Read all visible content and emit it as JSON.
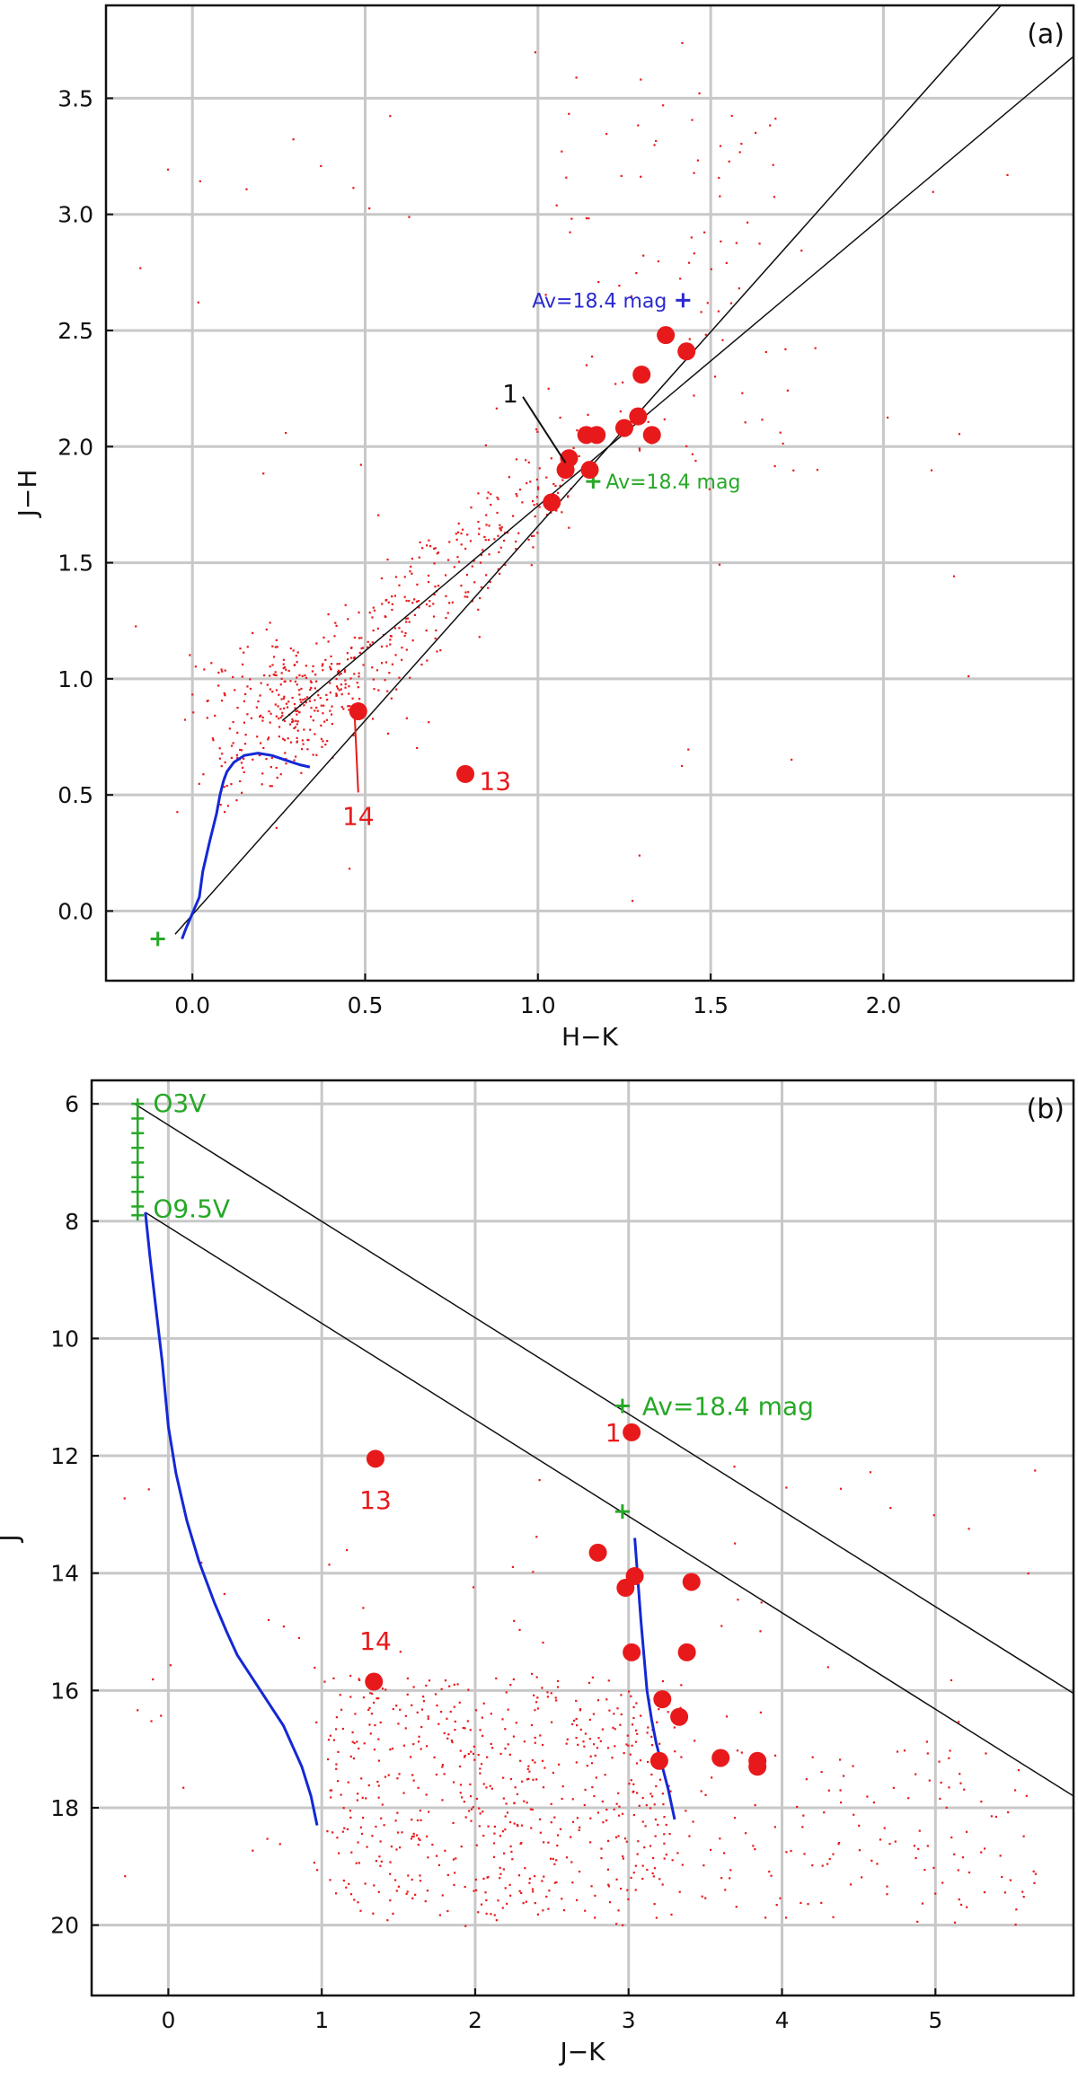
{
  "colors": {
    "star": "#e8191b",
    "isochrone": "#1428d6",
    "marker": "#27a827",
    "marker_blue": "#2a2ad0",
    "grid": "#c8c8c8",
    "axis": "#111111"
  },
  "chart_data": [
    {
      "type": "scatter",
      "panel_label": "(a)",
      "xlabel": "H−K",
      "ylabel": "J−H",
      "xlim": [
        -0.25,
        2.55
      ],
      "ylim": [
        -0.3,
        3.9
      ],
      "xticks": [
        "0.0",
        "0.5",
        "1.0",
        "1.5",
        "2.0"
      ],
      "yticks": [
        "0.0",
        "0.5",
        "1.0",
        "1.5",
        "2.0",
        "2.5",
        "3.0",
        "3.5"
      ],
      "grid": true,
      "reddening_lines": [
        {
          "x": [
            -0.05,
            2.37
          ],
          "y": [
            -0.1,
            3.95
          ]
        },
        {
          "x": [
            0.26,
            2.55
          ],
          "y": [
            0.82,
            3.68
          ]
        }
      ],
      "isochrone": {
        "x": [
          -0.03,
          -0.02,
          0.0,
          0.02,
          0.03,
          0.05,
          0.07,
          0.08,
          0.09,
          0.1,
          0.12,
          0.15,
          0.19,
          0.23,
          0.27,
          0.31,
          0.34
        ],
        "y": [
          -0.12,
          -0.08,
          -0.01,
          0.06,
          0.17,
          0.3,
          0.42,
          0.5,
          0.56,
          0.6,
          0.64,
          0.67,
          0.68,
          0.67,
          0.65,
          0.63,
          0.62
        ]
      },
      "markers": [
        {
          "x": -0.1,
          "y": -0.12,
          "color": "green"
        },
        {
          "x": 1.16,
          "y": 1.85,
          "color": "green",
          "text": "Av=18.4 mag"
        },
        {
          "x": 1.42,
          "y": 2.63,
          "color": "blue",
          "text": "Av=18.4 mag"
        }
      ],
      "sources": [
        {
          "x": 1.37,
          "y": 2.48
        },
        {
          "x": 1.43,
          "y": 2.41
        },
        {
          "x": 1.3,
          "y": 2.31
        },
        {
          "x": 1.14,
          "y": 2.05
        },
        {
          "x": 1.17,
          "y": 2.05
        },
        {
          "x": 1.25,
          "y": 2.08
        },
        {
          "x": 1.29,
          "y": 2.13
        },
        {
          "x": 1.33,
          "y": 2.05
        },
        {
          "x": 1.09,
          "y": 1.95
        },
        {
          "x": 1.08,
          "y": 1.9
        },
        {
          "x": 1.15,
          "y": 1.9
        },
        {
          "x": 1.04,
          "y": 1.76
        },
        {
          "x": 0.48,
          "y": 0.86
        },
        {
          "x": 0.79,
          "y": 0.59
        }
      ],
      "labels": [
        {
          "text": "1",
          "x": 0.92,
          "y": 2.23,
          "target": [
            1.08,
            1.93
          ]
        },
        {
          "text": "13",
          "x": 0.83,
          "y": 0.56
        },
        {
          "text": "14",
          "x": 0.48,
          "y": 0.41,
          "target": [
            0.47,
            0.83
          ]
        }
      ],
      "field_stars": {
        "count": 700,
        "shown_as": "small dots"
      }
    },
    {
      "type": "scatter",
      "panel_label": "(b)",
      "xlabel": "J−K",
      "ylabel": "J",
      "xlim": [
        -0.5,
        5.9
      ],
      "ylim": [
        21.2,
        5.6
      ],
      "xticks": [
        "0",
        "1",
        "2",
        "3",
        "4",
        "5"
      ],
      "yticks": [
        "6",
        "8",
        "10",
        "12",
        "14",
        "16",
        "18",
        "20"
      ],
      "grid": true,
      "reddening_lines": [
        {
          "x": [
            -0.22,
            5.9
          ],
          "y": [
            6.0,
            16.05
          ]
        },
        {
          "x": [
            -0.15,
            5.9
          ],
          "y": [
            7.85,
            17.8
          ]
        }
      ],
      "isochrone_left": {
        "x": [
          -0.15,
          -0.12,
          -0.08,
          -0.04,
          0.0,
          0.05,
          0.12,
          0.2,
          0.3,
          0.38,
          0.45,
          0.6,
          0.75,
          0.87,
          0.93,
          0.97
        ],
        "y": [
          7.85,
          8.6,
          9.5,
          10.4,
          11.5,
          12.3,
          13.1,
          13.8,
          14.5,
          15.0,
          15.4,
          16.0,
          16.6,
          17.3,
          17.8,
          18.3
        ]
      },
      "isochrone_right": {
        "x": [
          3.04,
          3.06,
          3.08,
          3.1,
          3.12,
          3.15,
          3.18,
          3.22,
          3.26,
          3.3
        ],
        "y": [
          13.4,
          14.1,
          14.8,
          15.4,
          16.0,
          16.5,
          16.9,
          17.3,
          17.7,
          18.2
        ]
      },
      "o_star_ticks": {
        "x": -0.2,
        "y": [
          6.0,
          6.25,
          6.5,
          6.75,
          7.0,
          7.25,
          7.5,
          7.75,
          7.9
        ]
      },
      "markers": [
        {
          "x": 2.96,
          "y": 11.15,
          "color": "green",
          "text": "Av=18.4 mag"
        },
        {
          "x": 2.96,
          "y": 12.95,
          "color": "green"
        }
      ],
      "marker_labels": [
        {
          "text": "O3V",
          "x": -0.1,
          "y": 6.0
        },
        {
          "text": "O9.5V",
          "x": -0.1,
          "y": 7.8
        }
      ],
      "sources": [
        {
          "x": 3.02,
          "y": 11.6
        },
        {
          "x": 1.35,
          "y": 12.05
        },
        {
          "x": 2.8,
          "y": 13.65
        },
        {
          "x": 3.04,
          "y": 14.05
        },
        {
          "x": 2.98,
          "y": 14.25
        },
        {
          "x": 3.41,
          "y": 14.15
        },
        {
          "x": 3.02,
          "y": 15.35
        },
        {
          "x": 3.38,
          "y": 15.35
        },
        {
          "x": 1.34,
          "y": 15.85
        },
        {
          "x": 3.22,
          "y": 16.15
        },
        {
          "x": 3.33,
          "y": 16.45
        },
        {
          "x": 3.2,
          "y": 17.2
        },
        {
          "x": 3.6,
          "y": 17.15
        },
        {
          "x": 3.84,
          "y": 17.2
        },
        {
          "x": 3.84,
          "y": 17.3
        }
      ],
      "labels": [
        {
          "text": "1",
          "x": 2.9,
          "y": 11.6
        },
        {
          "text": "13",
          "x": 1.35,
          "y": 12.75
        },
        {
          "text": "14",
          "x": 1.35,
          "y": 15.15
        }
      ],
      "field_stars": {
        "count": 800,
        "shown_as": "small dots"
      }
    }
  ]
}
